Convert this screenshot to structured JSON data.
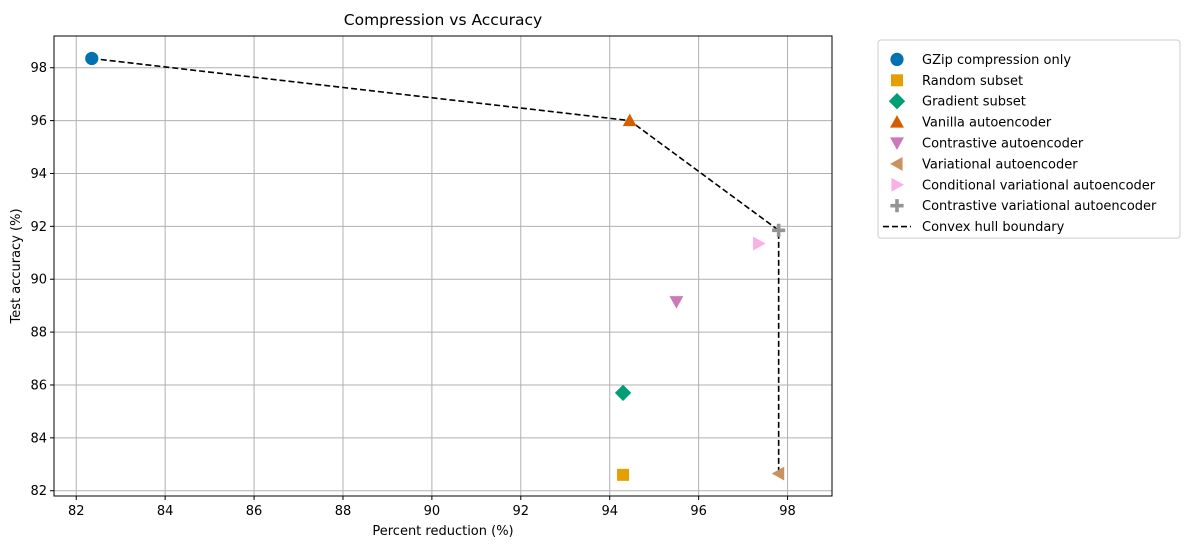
{
  "chart_data": {
    "type": "scatter",
    "title": "Compression vs Accuracy",
    "xlabel": "Percent reduction (%)",
    "ylabel": "Test accuracy (%)",
    "xlim": [
      81.5,
      99.0
    ],
    "ylim": [
      81.8,
      99.2
    ],
    "xticks": [
      82,
      84,
      86,
      88,
      90,
      92,
      94,
      96,
      98
    ],
    "yticks": [
      82,
      84,
      86,
      88,
      90,
      92,
      94,
      96,
      98
    ],
    "grid": true,
    "legend_position": "outside-right",
    "series": [
      {
        "name": "GZip compression only",
        "marker": "circle",
        "color": "#0072b2",
        "x": 82.35,
        "y": 98.35
      },
      {
        "name": "Random subset",
        "marker": "square",
        "color": "#e69f00",
        "x": 94.3,
        "y": 82.6
      },
      {
        "name": "Gradient subset",
        "marker": "diamond",
        "color": "#009e73",
        "x": 94.3,
        "y": 85.7
      },
      {
        "name": "Vanilla autoencoder",
        "marker": "triangle-up",
        "color": "#d55e00",
        "x": 94.45,
        "y": 96.0
      },
      {
        "name": "Contrastive autoencoder",
        "marker": "triangle-down",
        "color": "#cc78bc",
        "x": 95.5,
        "y": 89.15
      },
      {
        "name": "Variational autoencoder",
        "marker": "triangle-left",
        "color": "#ca9161",
        "x": 97.8,
        "y": 82.65
      },
      {
        "name": "Conditional variational autoencoder",
        "marker": "triangle-right",
        "color": "#fbafe4",
        "x": 97.35,
        "y": 91.35
      },
      {
        "name": "Contrastive variational autoencoder",
        "marker": "plus",
        "color": "#949494",
        "x": 97.8,
        "y": 91.85
      }
    ],
    "hull": {
      "name": "Convex hull boundary",
      "color": "#000000",
      "style": "dashed",
      "points": [
        [
          82.35,
          98.35
        ],
        [
          94.45,
          96.0
        ],
        [
          97.8,
          91.85
        ],
        [
          97.8,
          82.65
        ]
      ]
    }
  }
}
